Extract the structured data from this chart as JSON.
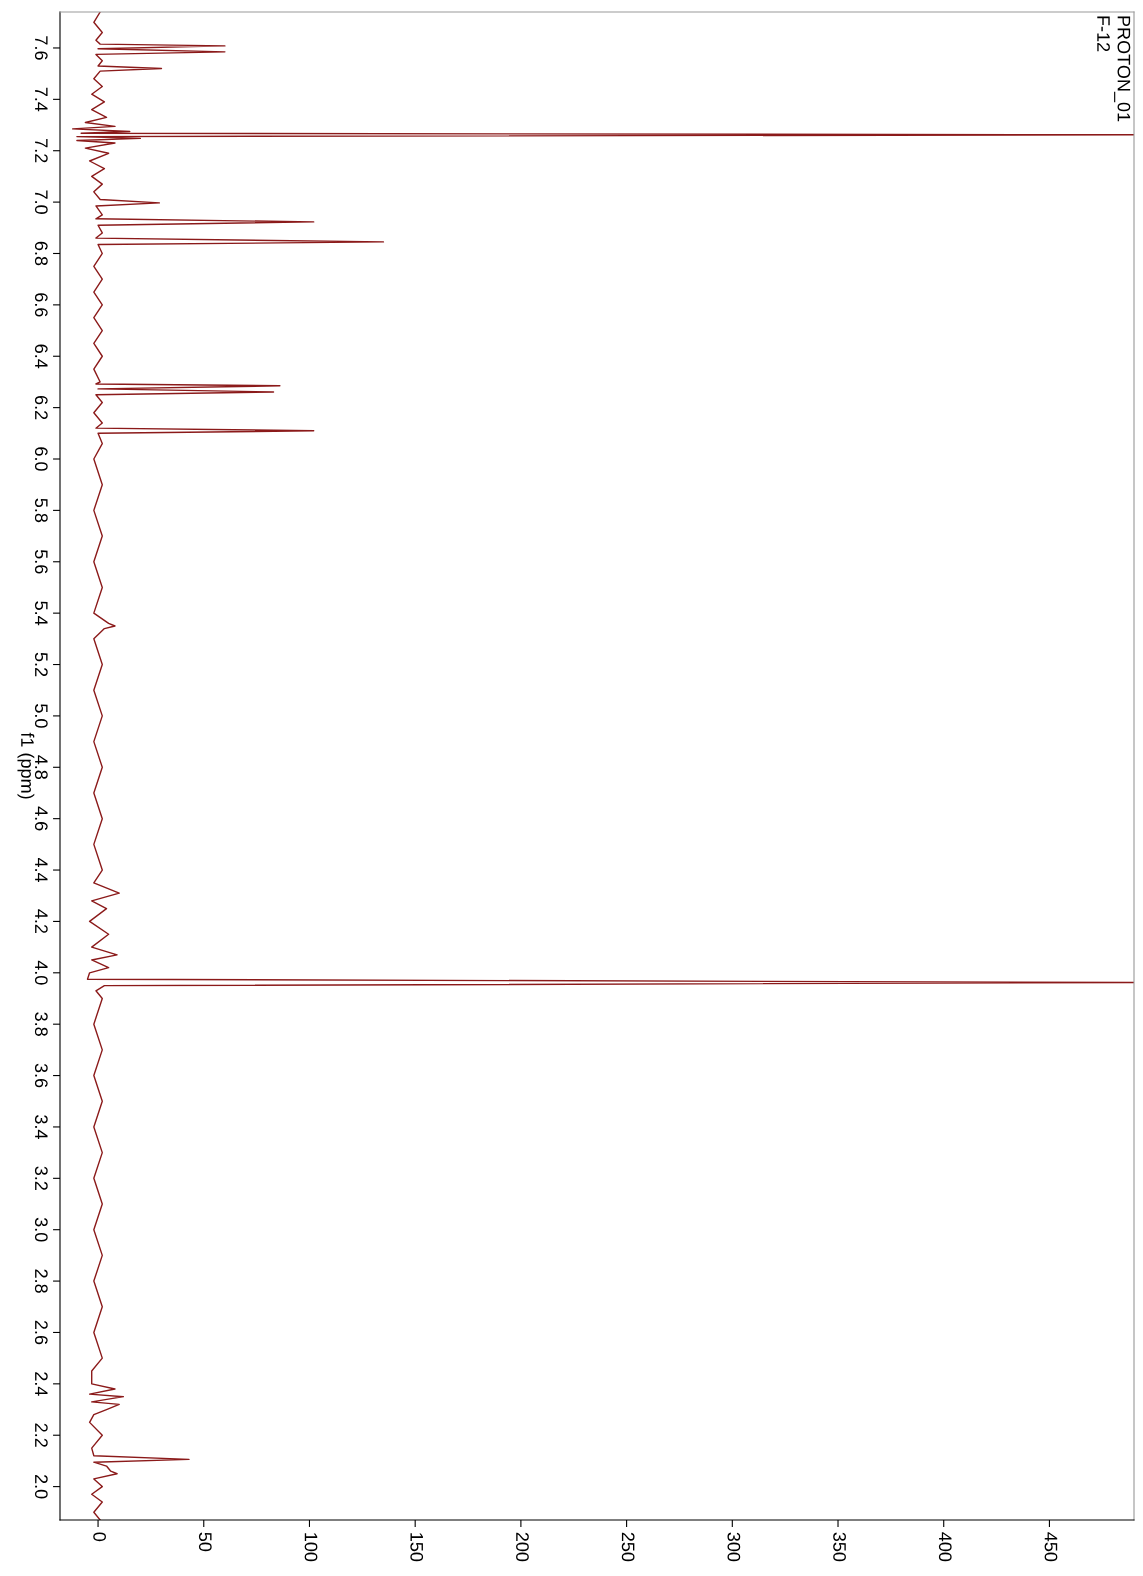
{
  "chart_data": {
    "type": "line",
    "orientation": "horizontal",
    "ylabel": "f1 (ppm)",
    "annotations": [
      "PROTON_01",
      "F-12"
    ],
    "xlim": [
      -18,
      490
    ],
    "xticks": [
      0,
      50,
      100,
      150,
      200,
      250,
      300,
      350,
      400,
      450
    ],
    "ylim": [
      1.87,
      7.74
    ],
    "yticks": [
      {
        "value": 2,
        "label": "2.0"
      },
      2.2,
      2.4,
      2.6,
      2.8,
      {
        "value": 3,
        "label": "3.0"
      },
      3.2,
      3.4,
      3.6,
      3.8,
      {
        "value": 4,
        "label": "4.0"
      },
      4.2,
      4.4,
      4.6,
      4.8,
      {
        "value": 5,
        "label": "5.0"
      },
      5.2,
      5.4,
      5.6,
      5.8,
      {
        "value": 6,
        "label": "6.0"
      },
      6.2,
      6.4,
      6.6,
      6.8,
      {
        "value": 7,
        "label": "7.0"
      },
      7.2,
      7.4,
      7.6
    ],
    "grid": false,
    "marker": "none",
    "line_style": "solid",
    "series": [
      {
        "color": "#8b1a1a",
        "x": [
          7.74,
          7.7,
          7.66,
          7.63,
          7.615,
          7.608,
          7.597,
          7.585,
          7.575,
          7.55,
          7.53,
          7.52,
          7.51,
          7.48,
          7.45,
          7.42,
          7.39,
          7.36,
          7.33,
          7.31,
          7.295,
          7.285,
          7.275,
          7.268,
          7.262,
          7.255,
          7.248,
          7.24,
          7.23,
          7.21,
          7.19,
          7.16,
          7.13,
          7.1,
          7.07,
          7.04,
          7.01,
          6.997,
          6.985,
          6.95,
          6.935,
          6.923,
          6.91,
          6.88,
          6.86,
          6.845,
          6.835,
          6.8,
          6.75,
          6.7,
          6.65,
          6.6,
          6.55,
          6.5,
          6.45,
          6.4,
          6.35,
          6.3,
          6.292,
          6.285,
          6.273,
          6.261,
          6.25,
          6.22,
          6.18,
          6.14,
          6.12,
          6.11,
          6.1,
          6.06,
          6.0,
          5.9,
          5.8,
          5.7,
          5.6,
          5.5,
          5.4,
          5.36,
          5.35,
          5.34,
          5.3,
          5.2,
          5.1,
          5.0,
          4.9,
          4.8,
          4.7,
          4.6,
          4.5,
          4.4,
          4.35,
          4.31,
          4.28,
          4.25,
          4.2,
          4.15,
          4.1,
          4.07,
          4.05,
          4.02,
          4.0,
          3.975,
          3.962,
          3.95,
          3.93,
          3.9,
          3.8,
          3.7,
          3.6,
          3.5,
          3.4,
          3.3,
          3.2,
          3.1,
          3.0,
          2.9,
          2.8,
          2.7,
          2.6,
          2.5,
          2.45,
          2.4,
          2.38,
          2.36,
          2.35,
          2.33,
          2.32,
          2.3,
          2.28,
          2.25,
          2.2,
          2.15,
          2.12,
          2.106,
          2.095,
          2.08,
          2.06,
          2.05,
          2.03,
          2.0,
          1.97,
          1.94,
          1.9,
          1.87
        ],
        "values": [
          1,
          -2,
          2,
          -1,
          1,
          60,
          0,
          60,
          -1,
          2,
          0,
          30,
          1,
          -2,
          2,
          -3,
          3,
          -3,
          4,
          -6,
          8,
          -12,
          15,
          -8,
          490,
          -10,
          20,
          -10,
          8,
          -6,
          5,
          -4,
          3,
          -3,
          2,
          -2,
          1,
          29,
          -1,
          2,
          -1,
          102,
          0,
          2,
          -1,
          135,
          0,
          2,
          -2,
          2,
          -2,
          2,
          -2,
          2,
          -2,
          2,
          -2,
          1,
          -1,
          86,
          0,
          83,
          -1,
          2,
          -2,
          2,
          -1,
          102,
          0,
          2,
          -2,
          2,
          -2,
          2,
          -2,
          2,
          -2,
          5,
          8,
          3,
          -2,
          2,
          -2,
          2,
          -2,
          2,
          -2,
          2,
          -2,
          2,
          -2,
          10,
          -3,
          4,
          -4,
          5,
          -3,
          9,
          -3,
          5,
          -4,
          -5,
          490,
          3,
          -1,
          2,
          -2,
          2,
          -2,
          2,
          -2,
          2,
          -2,
          2,
          -2,
          2,
          -2,
          2,
          -2,
          2,
          -3,
          -3,
          8,
          -4,
          12,
          -3,
          10,
          4,
          -2,
          -4,
          2,
          -3,
          -2,
          43,
          -2,
          4,
          6,
          9,
          -2,
          2,
          -3,
          2,
          -2,
          1
        ]
      }
    ]
  }
}
